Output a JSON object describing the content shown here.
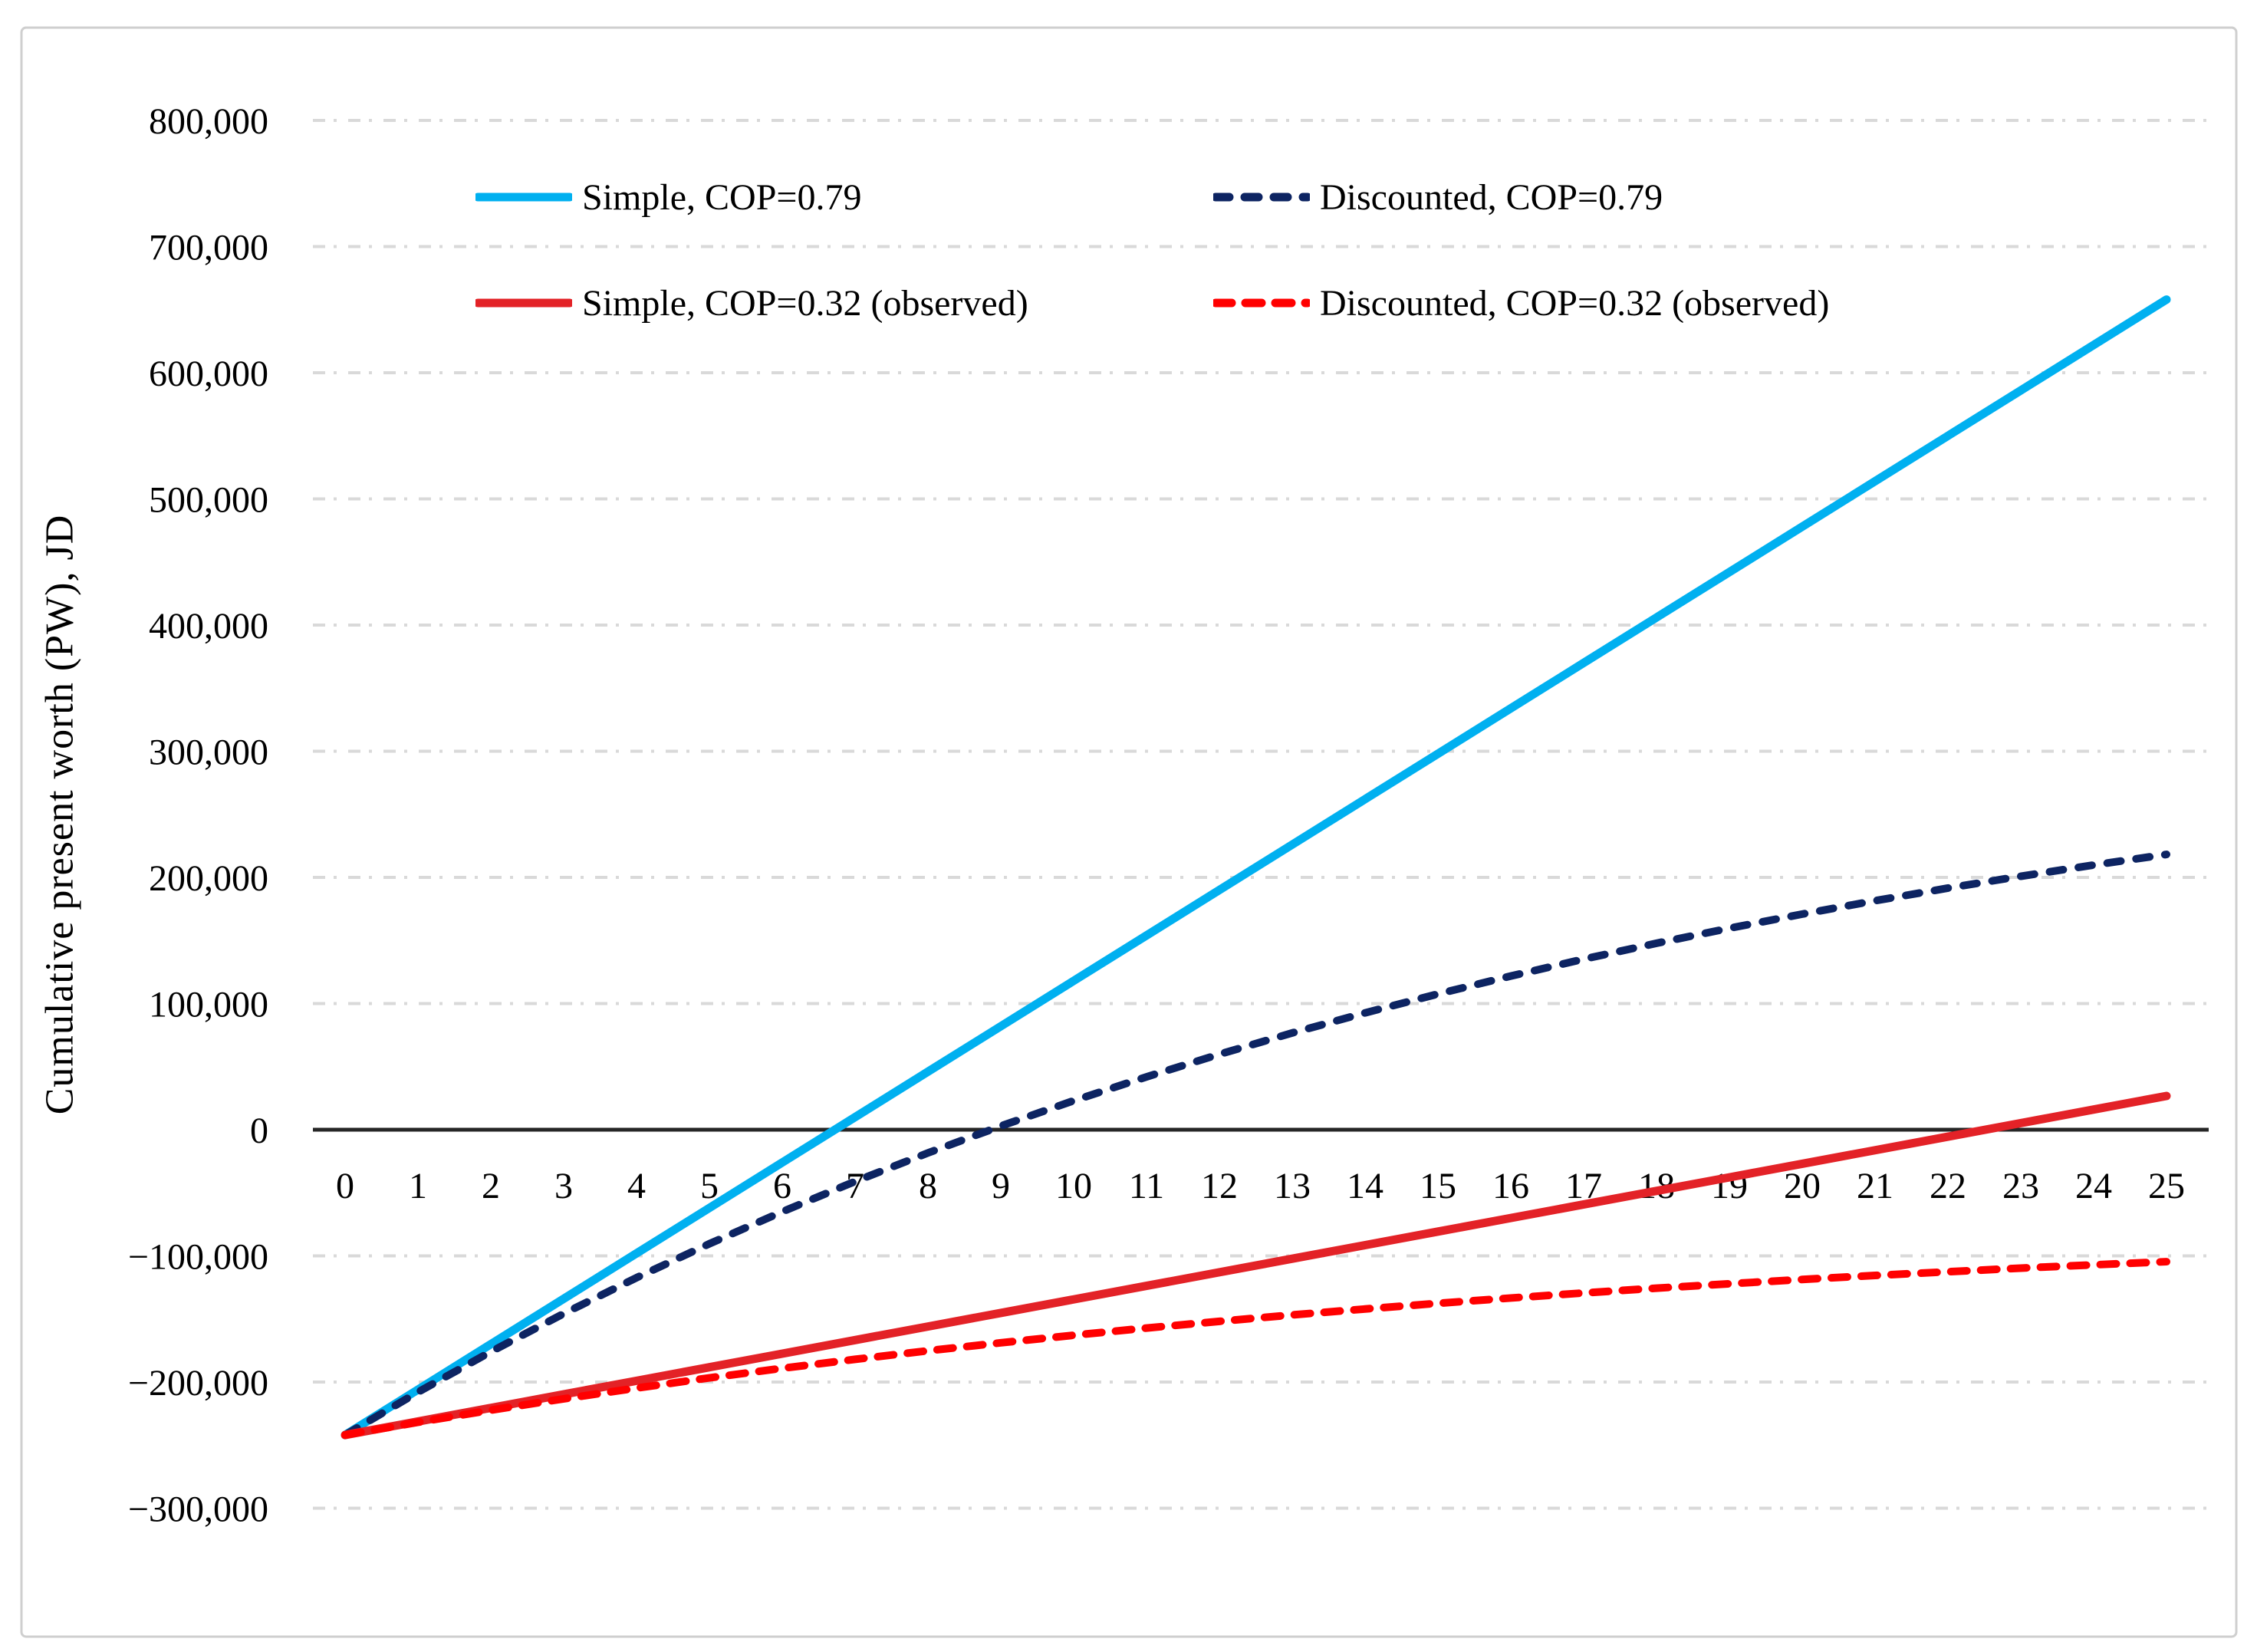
{
  "figure": {
    "background": "#FFFFFF",
    "border_color": "#CFCFCF"
  },
  "chart_data": {
    "type": "line",
    "title": "",
    "xlabel": "",
    "ylabel": "Cumulative present worth (PW), JD",
    "x_unit": "years",
    "xlim": [
      0,
      25
    ],
    "ylim": [
      -300000,
      800000
    ],
    "ytick_step": 100000,
    "grid": "horizontal dash-dot light gray",
    "legend_position": "top-inside, two columns",
    "axis_color": "#262626",
    "gridline_color": "#D9D9D9",
    "yticks": [
      {
        "v": 800000,
        "label": "800,000"
      },
      {
        "v": 700000,
        "label": "700,000"
      },
      {
        "v": 600000,
        "label": "600,000"
      },
      {
        "v": 500000,
        "label": "500,000"
      },
      {
        "v": 400000,
        "label": "400,000"
      },
      {
        "v": 300000,
        "label": "300,000"
      },
      {
        "v": 200000,
        "label": "200,000"
      },
      {
        "v": 100000,
        "label": "100,000"
      },
      {
        "v": 0,
        "label": "0"
      },
      {
        "v": -100000,
        "label": "−100,000"
      },
      {
        "v": -200000,
        "label": "−200,000"
      },
      {
        "v": -300000,
        "label": "−300,000"
      }
    ],
    "xticks": [
      0,
      1,
      2,
      3,
      4,
      5,
      6,
      7,
      8,
      9,
      10,
      11,
      12,
      13,
      14,
      15,
      16,
      17,
      18,
      19,
      20,
      21,
      22,
      23,
      24,
      25
    ],
    "x": [
      0,
      1,
      2,
      3,
      4,
      5,
      6,
      7,
      8,
      9,
      10,
      11,
      12,
      13,
      14,
      15,
      16,
      17,
      18,
      19,
      20,
      21,
      22,
      23,
      24,
      25
    ],
    "series": [
      {
        "id": "simple-cop-079",
        "name": "Simple, COP=0.79",
        "color": "#00B0F0",
        "style": "solid",
        "values": [
          -242000,
          -206000,
          -170000,
          -134000,
          -98000,
          -62000,
          -26000,
          10000,
          46000,
          82000,
          118000,
          154000,
          190000,
          226000,
          262000,
          298000,
          334000,
          370000,
          406000,
          442000,
          478000,
          514000,
          550000,
          586000,
          622000,
          658000
        ]
      },
      {
        "id": "discounted-cop-079",
        "name": "Discounted, COP=0.79",
        "color": "#0D2462",
        "style": "dashed",
        "values": [
          -242000,
          -208000,
          -176000,
          -145800,
          -117300,
          -90400,
          -65000,
          -41000,
          -18400,
          2900,
          23000,
          41900,
          59800,
          76700,
          92600,
          107600,
          121800,
          135200,
          147800,
          159700,
          170900,
          181500,
          191500,
          200900,
          209800,
          218200
        ]
      },
      {
        "id": "simple-cop-032",
        "name": "Simple, COP=0.32 (observed)",
        "color": "#E32227",
        "style": "solid",
        "values": [
          -242000,
          -231250,
          -220500,
          -209750,
          -199000,
          -188250,
          -177500,
          -166750,
          -156000,
          -145250,
          -134500,
          -123750,
          -113000,
          -102250,
          -91500,
          -80750,
          -70000,
          -59250,
          -48500,
          -37750,
          -27000,
          -16250,
          -5500,
          5250,
          16000,
          26750
        ]
      },
      {
        "id": "discounted-cop-032",
        "name": "Discounted, COP=0.32 (observed)",
        "color": "#FF0000",
        "style": "dashed",
        "values": [
          -242000,
          -231900,
          -222300,
          -213300,
          -204800,
          -196700,
          -189100,
          -182000,
          -175200,
          -168900,
          -162900,
          -157200,
          -151900,
          -146800,
          -142100,
          -137600,
          -133400,
          -129400,
          -125600,
          -122100,
          -118700,
          -115500,
          -112600,
          -109700,
          -107100,
          -104600
        ]
      }
    ]
  }
}
